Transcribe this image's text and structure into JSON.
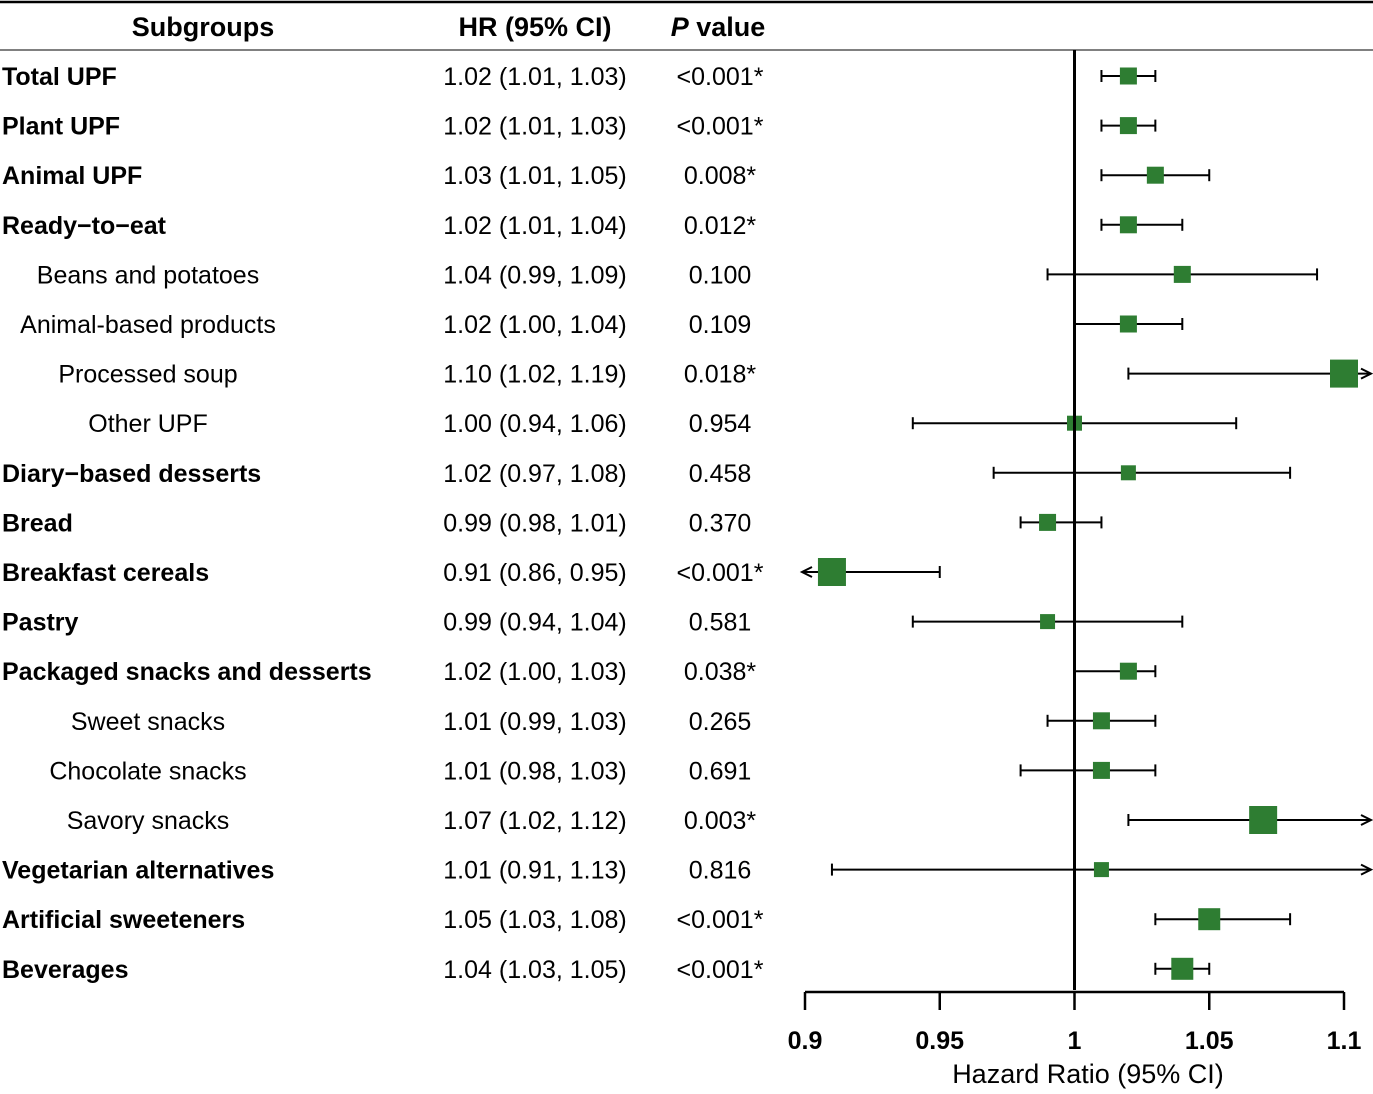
{
  "headers": {
    "subgroups": "Subgroups",
    "hr": "HR (95% CI)",
    "p_italic": "P",
    "p_rest": " value"
  },
  "chart_data": {
    "type": "forest",
    "xlabel": "Hazard Ratio (95% CI)",
    "xlim": [
      0.9,
      1.1
    ],
    "x_ticks": [
      0.9,
      0.95,
      1,
      1.05,
      1.1
    ],
    "x_tick_labels": [
      "0.9",
      "0.95",
      "1",
      "1.05",
      "1.1"
    ],
    "reference_line": 1,
    "marker_color": "#2e7d32",
    "rows": [
      {
        "label": "Total UPF",
        "bold": true,
        "indent": false,
        "hr_text": "1.02 (1.01, 1.03)",
        "p_text": "<0.001*",
        "hr": 1.02,
        "lo": 1.01,
        "hi": 1.03
      },
      {
        "label": "Plant UPF",
        "bold": true,
        "indent": false,
        "hr_text": "1.02 (1.01, 1.03)",
        "p_text": "<0.001*",
        "hr": 1.02,
        "lo": 1.01,
        "hi": 1.03
      },
      {
        "label": "Animal UPF",
        "bold": true,
        "indent": false,
        "hr_text": "1.03 (1.01, 1.05)",
        "p_text": "0.008*",
        "hr": 1.03,
        "lo": 1.01,
        "hi": 1.05
      },
      {
        "label": "Ready−to−eat",
        "bold": true,
        "indent": false,
        "hr_text": "1.02 (1.01, 1.04)",
        "p_text": "0.012*",
        "hr": 1.02,
        "lo": 1.01,
        "hi": 1.04
      },
      {
        "label": "Beans and potatoes",
        "bold": false,
        "indent": true,
        "hr_text": "1.04 (0.99, 1.09)",
        "p_text": "0.100",
        "hr": 1.04,
        "lo": 0.99,
        "hi": 1.09
      },
      {
        "label": "Animal-based products",
        "bold": false,
        "indent": true,
        "hr_text": "1.02 (1.00, 1.04)",
        "p_text": "0.109",
        "hr": 1.02,
        "lo": 1.0,
        "hi": 1.04
      },
      {
        "label": "Processed soup",
        "bold": false,
        "indent": true,
        "hr_text": "1.10 (1.02, 1.19)",
        "p_text": "0.018*",
        "hr": 1.1,
        "lo": 1.02,
        "hi": 1.19
      },
      {
        "label": "Other UPF",
        "bold": false,
        "indent": true,
        "hr_text": "1.00 (0.94, 1.06)",
        "p_text": "0.954",
        "hr": 1.0,
        "lo": 0.94,
        "hi": 1.06
      },
      {
        "label": "Diary−based desserts",
        "bold": true,
        "indent": false,
        "hr_text": "1.02 (0.97, 1.08)",
        "p_text": "0.458",
        "hr": 1.02,
        "lo": 0.97,
        "hi": 1.08
      },
      {
        "label": "Bread",
        "bold": true,
        "indent": false,
        "hr_text": "0.99 (0.98, 1.01)",
        "p_text": "0.370",
        "hr": 0.99,
        "lo": 0.98,
        "hi": 1.01
      },
      {
        "label": "Breakfast cereals",
        "bold": true,
        "indent": false,
        "hr_text": "0.91 (0.86, 0.95)",
        "p_text": "<0.001*",
        "hr": 0.91,
        "lo": 0.86,
        "hi": 0.95
      },
      {
        "label": "Pastry",
        "bold": true,
        "indent": false,
        "hr_text": "0.99 (0.94, 1.04)",
        "p_text": "0.581",
        "hr": 0.99,
        "lo": 0.94,
        "hi": 1.04
      },
      {
        "label": "Packaged snacks and desserts",
        "bold": true,
        "indent": false,
        "hr_text": "1.02 (1.00, 1.03)",
        "p_text": "0.038*",
        "hr": 1.02,
        "lo": 1.0,
        "hi": 1.03
      },
      {
        "label": "Sweet snacks",
        "bold": false,
        "indent": true,
        "hr_text": "1.01 (0.99, 1.03)",
        "p_text": "0.265",
        "hr": 1.01,
        "lo": 0.99,
        "hi": 1.03
      },
      {
        "label": "Chocolate snacks",
        "bold": false,
        "indent": true,
        "hr_text": "1.01 (0.98, 1.03)",
        "p_text": "0.691",
        "hr": 1.01,
        "lo": 0.98,
        "hi": 1.03
      },
      {
        "label": "Savory snacks",
        "bold": false,
        "indent": true,
        "hr_text": "1.07 (1.02, 1.12)",
        "p_text": "0.003*",
        "hr": 1.07,
        "lo": 1.02,
        "hi": 1.12
      },
      {
        "label": "Vegetarian alternatives",
        "bold": true,
        "indent": false,
        "hr_text": "1.01 (0.91, 1.13)",
        "p_text": "0.816",
        "hr": 1.01,
        "lo": 0.91,
        "hi": 1.13
      },
      {
        "label": "Artificial sweeteners",
        "bold": true,
        "indent": false,
        "hr_text": "1.05 (1.03, 1.08)",
        "p_text": "<0.001*",
        "hr": 1.05,
        "lo": 1.03,
        "hi": 1.08
      },
      {
        "label": "Beverages",
        "bold": true,
        "indent": false,
        "hr_text": "1.04 (1.03, 1.05)",
        "p_text": "<0.001*",
        "hr": 1.04,
        "lo": 1.03,
        "hi": 1.05
      }
    ]
  }
}
